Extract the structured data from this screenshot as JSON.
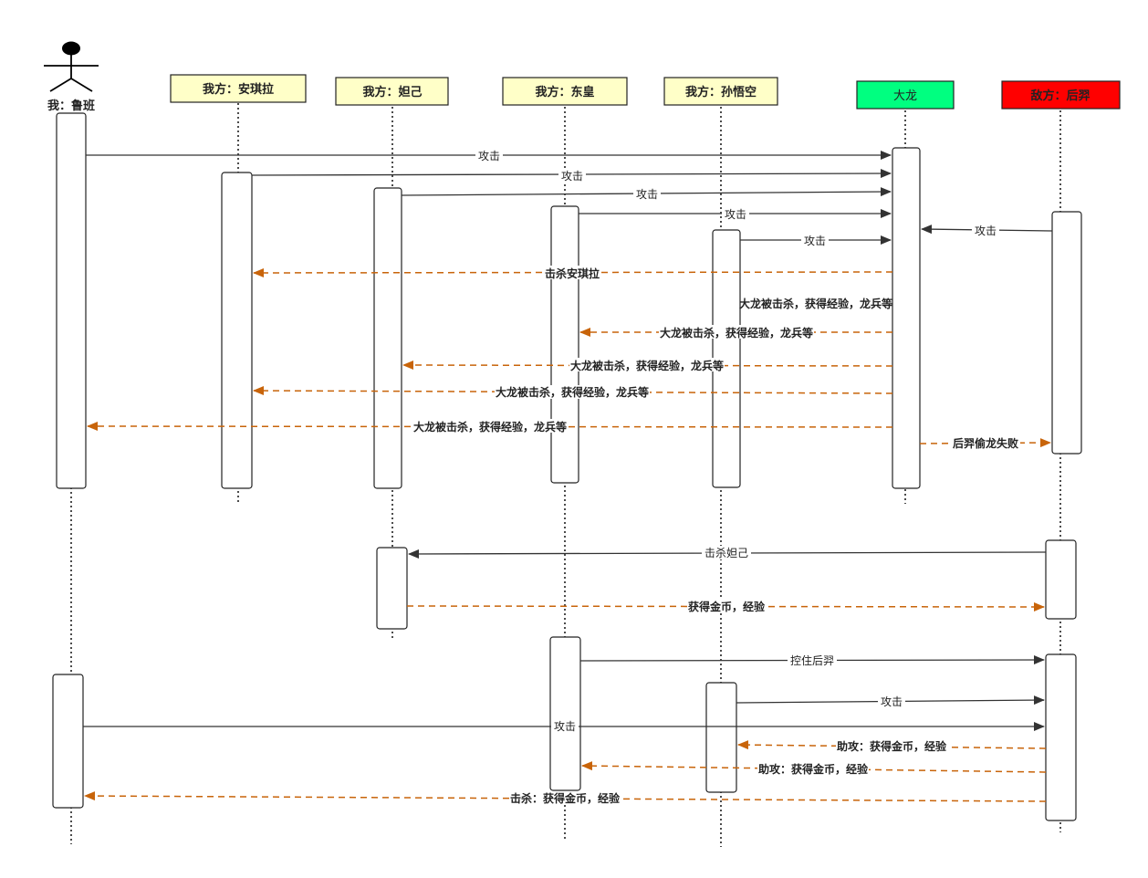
{
  "actors": {
    "me": "我：鲁班",
    "angela": "我方：安琪拉",
    "daji": "我方：妲己",
    "donghuang": "我方：东皇",
    "wukong": "我方：孙悟空",
    "dragon": "大龙",
    "houyi": "敌方：后羿"
  },
  "colors": {
    "ally_header": "#ffffc8",
    "dragon_header": "#00ff80",
    "enemy_header": "#ff0000",
    "return_arrow": "#c8640a",
    "sync_arrow": "#333333"
  },
  "messages": {
    "m1": "攻击",
    "m2": "攻击",
    "m3": "攻击",
    "m4": "攻击",
    "m5": "攻击",
    "m6": "攻击",
    "m7": "击杀安琪拉",
    "m8": "大龙被击杀，获得经验，龙兵等",
    "m9": "大龙被击杀，获得经验，龙兵等",
    "m10": "大龙被击杀，获得经验，龙兵等",
    "m11": "大龙被击杀，获得经验，龙兵等",
    "m12": "大龙被击杀，获得经验，龙兵等",
    "m13": "后羿偷龙失败",
    "m14": "击杀妲己",
    "m15": "获得金币，经验",
    "m16": "控住后羿",
    "m17": "攻击",
    "m18": "攻击",
    "m19": "助攻：获得金币，经验",
    "m20": "助攻：获得金币，经验",
    "m21": "击杀：获得金币，经验"
  }
}
